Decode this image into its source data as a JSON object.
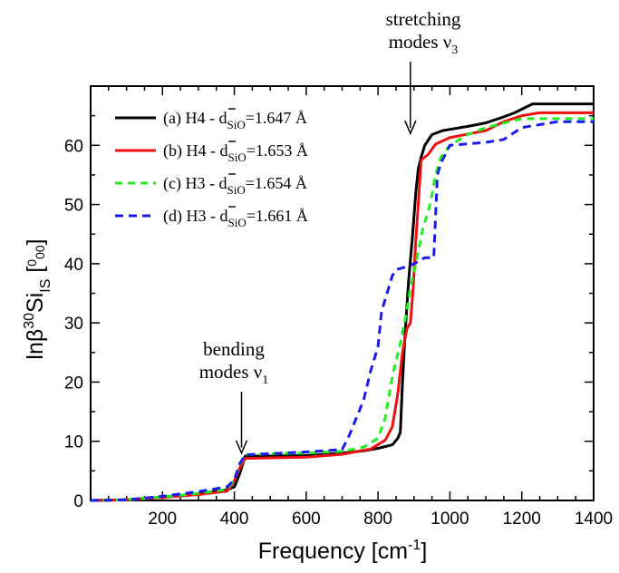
{
  "chart_data": {
    "type": "line",
    "title": "",
    "xlabel": "Frequency [cm",
    "xlabel_sup": "-1",
    "xlabel_end": "]",
    "ylabel": {
      "pre": "lnβ",
      "sup": "30",
      "mid": "Si",
      "sub": "IS",
      "unit_open": " [",
      "unit_num": "0",
      "unit_den": "00",
      "unit_close": "]"
    },
    "xlim": [
      0,
      1400
    ],
    "ylim": [
      0,
      70
    ],
    "xticks": [
      200,
      400,
      600,
      800,
      1000,
      1200,
      1400
    ],
    "yticks": [
      0,
      10,
      20,
      30,
      40,
      50,
      60
    ],
    "grid": false,
    "legend_position": "top-left",
    "series": [
      {
        "name": "(a) H4 - d",
        "sub": "SiO",
        "value": "=1.647 Å",
        "color": "#000000",
        "dash": "solid",
        "points": [
          [
            0,
            0
          ],
          [
            100,
            0.1
          ],
          [
            200,
            0.6
          ],
          [
            300,
            1.1
          ],
          [
            380,
            1.8
          ],
          [
            400,
            2.3
          ],
          [
            415,
            4.5
          ],
          [
            430,
            7.5
          ],
          [
            500,
            7.5
          ],
          [
            600,
            7.6
          ],
          [
            700,
            8.0
          ],
          [
            760,
            8.4
          ],
          [
            800,
            8.8
          ],
          [
            840,
            9.4
          ],
          [
            855,
            10.5
          ],
          [
            862,
            11.5
          ],
          [
            868,
            20
          ],
          [
            875,
            28
          ],
          [
            885,
            37
          ],
          [
            895,
            44
          ],
          [
            905,
            52
          ],
          [
            912,
            56
          ],
          [
            920,
            58
          ],
          [
            930,
            60
          ],
          [
            950,
            61.8
          ],
          [
            980,
            62.5
          ],
          [
            1000,
            62.7
          ],
          [
            1050,
            63.2
          ],
          [
            1100,
            63.8
          ],
          [
            1150,
            64.8
          ],
          [
            1180,
            65.5
          ],
          [
            1230,
            67
          ],
          [
            1400,
            67
          ]
        ]
      },
      {
        "name": "(b) H4 - d",
        "sub": "SiO",
        "value": "=1.653 Å",
        "color": "#ee1111",
        "dash": "solid",
        "points": [
          [
            0,
            0
          ],
          [
            100,
            0.1
          ],
          [
            200,
            0.5
          ],
          [
            300,
            1.0
          ],
          [
            380,
            1.6
          ],
          [
            400,
            3.3
          ],
          [
            415,
            5.5
          ],
          [
            430,
            7.1
          ],
          [
            500,
            7.2
          ],
          [
            600,
            7.3
          ],
          [
            700,
            7.8
          ],
          [
            780,
            8.7
          ],
          [
            820,
            10.2
          ],
          [
            840,
            12.5
          ],
          [
            855,
            18
          ],
          [
            868,
            25
          ],
          [
            880,
            29
          ],
          [
            890,
            30
          ],
          [
            898,
            36
          ],
          [
            905,
            44
          ],
          [
            912,
            50
          ],
          [
            920,
            57.5
          ],
          [
            940,
            58.5
          ],
          [
            960,
            60.2
          ],
          [
            1000,
            61.3
          ],
          [
            1100,
            62.5
          ],
          [
            1150,
            64
          ],
          [
            1200,
            65
          ],
          [
            1250,
            65.5
          ],
          [
            1400,
            65.5
          ]
        ]
      },
      {
        "name": "(c) H3 - d",
        "sub": "SiO",
        "value": "=1.654 Å",
        "color": "#22ee22",
        "dash": "8,6",
        "points": [
          [
            0,
            0
          ],
          [
            100,
            0.1
          ],
          [
            200,
            0.6
          ],
          [
            300,
            1.2
          ],
          [
            380,
            1.9
          ],
          [
            400,
            3.5
          ],
          [
            415,
            6.0
          ],
          [
            430,
            7.7
          ],
          [
            500,
            7.9
          ],
          [
            600,
            8.0
          ],
          [
            700,
            8.3
          ],
          [
            760,
            9.0
          ],
          [
            800,
            10.5
          ],
          [
            820,
            14
          ],
          [
            840,
            21
          ],
          [
            860,
            26
          ],
          [
            880,
            32
          ],
          [
            890,
            36
          ],
          [
            898,
            38
          ],
          [
            905,
            40
          ],
          [
            925,
            46
          ],
          [
            945,
            50
          ],
          [
            960,
            55
          ],
          [
            975,
            58
          ],
          [
            1000,
            60
          ],
          [
            1050,
            61.8
          ],
          [
            1100,
            63
          ],
          [
            1200,
            64.5
          ],
          [
            1400,
            64.5
          ]
        ]
      },
      {
        "name": "(d) H3 - d",
        "sub": "SiO",
        "value": "=1.661 Å",
        "color": "#1a1aee",
        "dash": "9,6",
        "points": [
          [
            0,
            0
          ],
          [
            100,
            0.1
          ],
          [
            200,
            0.7
          ],
          [
            300,
            1.5
          ],
          [
            380,
            2.3
          ],
          [
            400,
            3.5
          ],
          [
            415,
            6.2
          ],
          [
            430,
            7.7
          ],
          [
            500,
            7.9
          ],
          [
            600,
            8.2
          ],
          [
            700,
            8.6
          ],
          [
            720,
            11
          ],
          [
            740,
            14
          ],
          [
            760,
            17
          ],
          [
            780,
            22
          ],
          [
            800,
            26
          ],
          [
            810,
            32
          ],
          [
            820,
            34
          ],
          [
            830,
            36
          ],
          [
            840,
            38
          ],
          [
            850,
            39
          ],
          [
            880,
            39.5
          ],
          [
            900,
            40
          ],
          [
            930,
            41
          ],
          [
            955,
            41
          ],
          [
            965,
            55
          ],
          [
            975,
            57
          ],
          [
            1000,
            60
          ],
          [
            1100,
            60.5
          ],
          [
            1150,
            61
          ],
          [
            1200,
            63
          ],
          [
            1300,
            64
          ],
          [
            1400,
            64
          ]
        ]
      }
    ],
    "annotations": [
      {
        "lines": [
          "stretching",
          "modes ν"
        ],
        "sub": "3",
        "arrow_x": 890,
        "arrow_y": 62
      },
      {
        "lines": [
          "bending",
          "modes ν"
        ],
        "sub": "1",
        "arrow_x": 420,
        "arrow_y": 8
      }
    ]
  }
}
